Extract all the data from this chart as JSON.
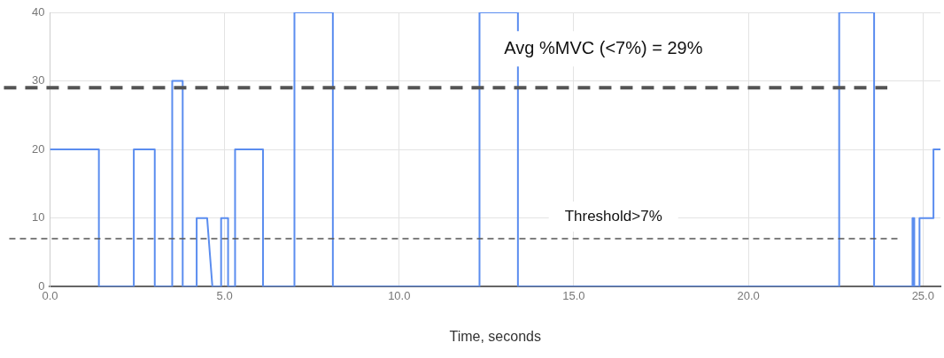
{
  "chart_data": {
    "type": "line",
    "xlabel": "Time, seconds",
    "x": [
      0,
      1.4,
      1.4,
      2.4,
      2.4,
      3.0,
      3.0,
      3.5,
      3.5,
      3.8,
      3.8,
      4.2,
      4.2,
      4.5,
      4.65,
      4.9,
      4.9,
      5.1,
      5.1,
      5.3,
      5.3,
      6.1,
      6.1,
      7.0,
      7.0,
      8.1,
      8.1,
      12.3,
      12.3,
      13.4,
      13.4,
      22.6,
      22.6,
      23.6,
      23.6,
      24.7,
      24.7,
      24.75,
      24.75,
      24.9,
      24.9,
      25.3,
      25.3,
      25.5
    ],
    "series": [
      {
        "color": "#5b8def",
        "values": [
          20,
          20,
          0,
          0,
          20,
          20,
          0,
          0,
          30,
          30,
          0,
          0,
          10,
          10,
          0,
          0,
          10,
          10,
          0,
          0,
          20,
          20,
          0,
          0,
          40,
          40,
          0,
          0,
          40,
          40,
          0,
          0,
          40,
          40,
          0,
          0,
          10,
          10,
          0,
          0,
          10,
          10,
          20,
          20
        ]
      }
    ],
    "xlim": [
      0,
      25.5
    ],
    "xticks": [
      {
        "value": 0,
        "label": "0.0"
      },
      {
        "value": 5,
        "label": "5.0"
      },
      {
        "value": 10,
        "label": "10.0"
      },
      {
        "value": 15,
        "label": "15.0"
      },
      {
        "value": 20,
        "label": "20.0"
      },
      {
        "value": 25,
        "label": "25.0"
      }
    ],
    "ylim": [
      0,
      40
    ],
    "yticks": [
      0,
      10,
      20,
      30,
      40
    ],
    "grid": true,
    "legend": false,
    "marker": "none",
    "line_style": "solid",
    "ref_lines": [
      {
        "axis": "y",
        "value": 29,
        "label": "Avg %MVC (<7%) = 29%",
        "color": "#555555",
        "line_style": "dashed"
      },
      {
        "axis": "y",
        "value": 7,
        "label": "Threshold>7%",
        "color": "#555555",
        "line_style": "dashed"
      }
    ]
  }
}
